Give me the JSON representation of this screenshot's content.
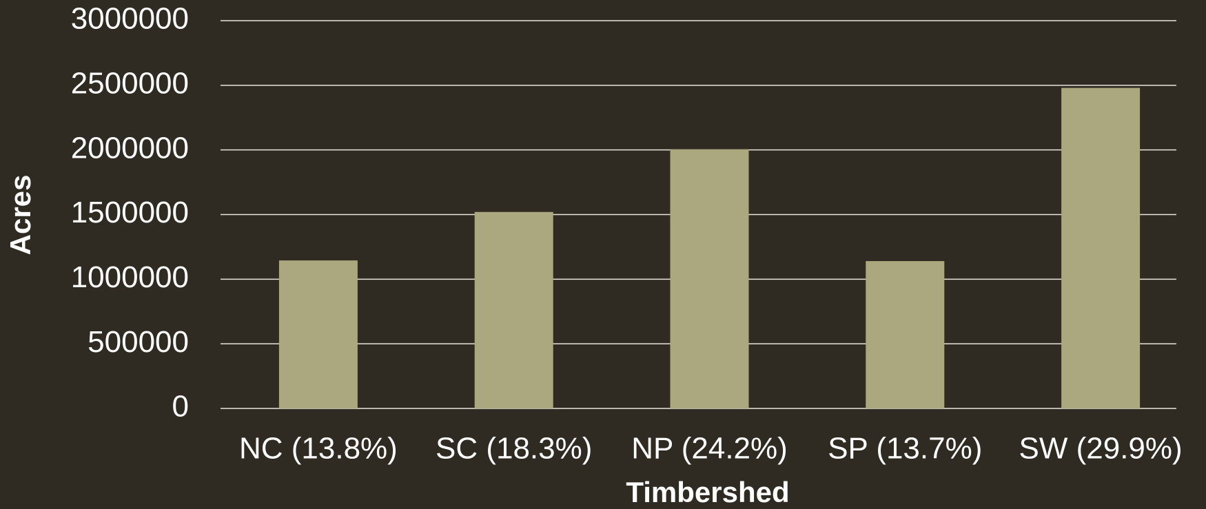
{
  "chart_data": {
    "type": "bar",
    "categories": [
      "NC (13.8%)",
      "SC (18.3%)",
      "NP (24.2%)",
      "SP (13.7%)",
      "SW (29.9%)"
    ],
    "values": [
      1145000,
      1520000,
      2005000,
      1140000,
      2480000
    ],
    "color": "#aba77e",
    "xlabel": "Timbershed",
    "ylabel": "Acres",
    "ylim": [
      0,
      3000000
    ],
    "yticks": [
      0,
      500000,
      1000000,
      1500000,
      2000000,
      2500000,
      3000000
    ],
    "grid": true
  }
}
